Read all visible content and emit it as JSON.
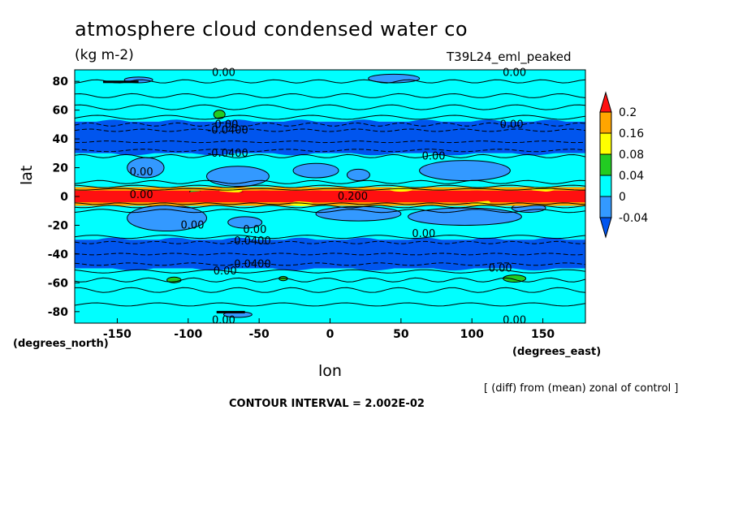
{
  "chart_data": {
    "type": "heatmap",
    "title": "atmosphere cloud condensed water co",
    "units": "(kg m-2)",
    "run_name": "T39L24_eml_peaked",
    "xlabel": "lon",
    "ylabel": "lat",
    "x_note": "(degrees_east)",
    "y_note": "(degrees_north)",
    "xlim": [
      -180,
      180
    ],
    "ylim": [
      -88,
      88
    ],
    "x_ticks": [
      -150,
      -100,
      -50,
      0,
      50,
      100,
      150
    ],
    "y_ticks": [
      80,
      60,
      40,
      20,
      0,
      -20,
      -40,
      -60,
      -80
    ],
    "contour_interval": "CONTOUR INTERVAL = 2.002E-02",
    "diff_note": "[ (diff) from (mean) zonal of control ]",
    "colorbar": {
      "levels": [
        "0.2",
        "0.16",
        "0.08",
        "0.04",
        "0",
        "-0.04"
      ],
      "colors": [
        "#ff1010",
        "#ffa500",
        "#ffff00",
        "#22cc22",
        "#00ffff",
        "#3399ff",
        "#0055ee"
      ]
    },
    "bands": [
      {
        "lat_min": 52,
        "lat_max": 88,
        "class": "0 to 0.04"
      },
      {
        "lat_min": 30,
        "lat_max": 52,
        "class": "below -0.04"
      },
      {
        "lat_min": 6,
        "lat_max": 30,
        "class": "0 to 0.04"
      },
      {
        "lat_min": -6,
        "lat_max": 6,
        "class": "above 0.2"
      },
      {
        "lat_min": -30,
        "lat_max": -6,
        "class": "0 to 0.04"
      },
      {
        "lat_min": -50,
        "lat_max": -30,
        "class": "below -0.04"
      },
      {
        "lat_min": -88,
        "lat_max": -50,
        "class": "0 to 0.04"
      }
    ],
    "contour_labels": [
      {
        "text": "0.00",
        "lon": -75,
        "lat": 86
      },
      {
        "text": "0.00",
        "lon": 130,
        "lat": 86
      },
      {
        "text": "0.00",
        "lon": -73,
        "lat": 50
      },
      {
        "text": "-0.0400",
        "lon": -72,
        "lat": 46
      },
      {
        "text": "0.00",
        "lon": 128,
        "lat": 50
      },
      {
        "text": "-0.0400",
        "lon": -72,
        "lat": 30
      },
      {
        "text": "0.00",
        "lon": 73,
        "lat": 28
      },
      {
        "text": "0.00",
        "lon": -133,
        "lat": 17
      },
      {
        "text": "0.00",
        "lon": -133,
        "lat": 1
      },
      {
        "text": "0.200",
        "lon": 16,
        "lat": 0
      },
      {
        "text": "0.00",
        "lon": -97,
        "lat": -20
      },
      {
        "text": "0.00",
        "lon": -53,
        "lat": -23
      },
      {
        "text": "-0.0400",
        "lon": -56,
        "lat": -31
      },
      {
        "text": "0.00",
        "lon": 66,
        "lat": -26
      },
      {
        "text": "-0.0400",
        "lon": -56,
        "lat": -47
      },
      {
        "text": "0.00",
        "lon": -74,
        "lat": -52
      },
      {
        "text": "0.00",
        "lon": 120,
        "lat": -50
      },
      {
        "text": "0.00",
        "lon": -75,
        "lat": -86
      },
      {
        "text": "0.00",
        "lon": 130,
        "lat": -86
      }
    ]
  }
}
